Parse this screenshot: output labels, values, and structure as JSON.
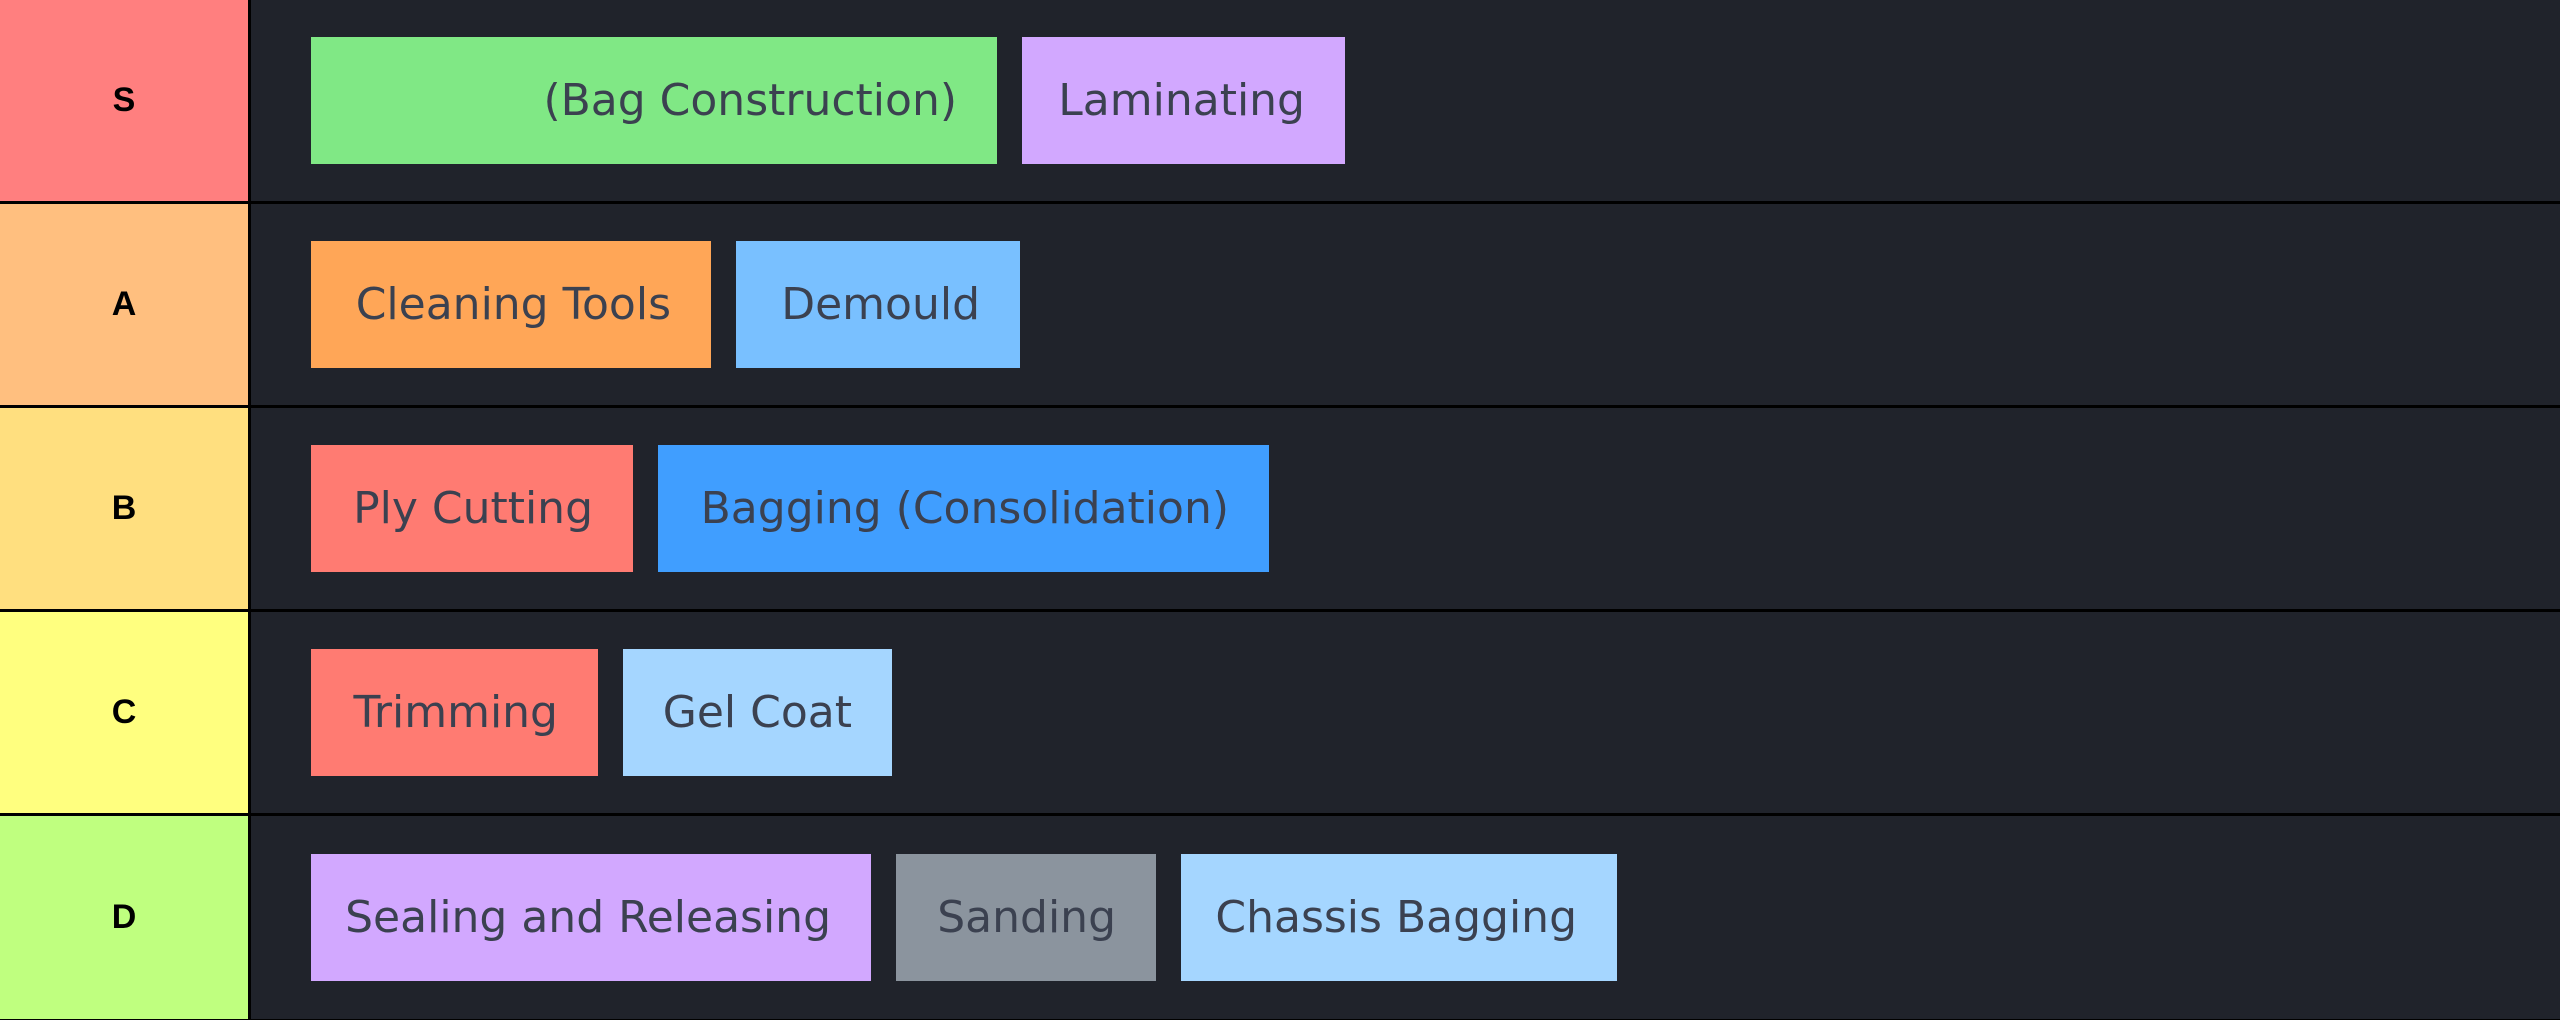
{
  "tiers": [
    {
      "label": "S",
      "color": "#ff7f7f",
      "items": [
        {
          "text": "(Bag Construction)",
          "color": "#7ee787"
        },
        {
          "text": "Laminating",
          "color": "#d2a8ff"
        }
      ]
    },
    {
      "label": "A",
      "color": "#ffbf7f",
      "items": [
        {
          "text": "Cleaning Tools",
          "color": "#ffa657"
        },
        {
          "text": "Demould",
          "color": "#79c0ff"
        }
      ]
    },
    {
      "label": "B",
      "color": "#ffdf7f",
      "items": [
        {
          "text": "Ply Cutting",
          "color": "#ff7b72"
        },
        {
          "text": "Bagging (Consolidation)",
          "color": "#409eff"
        }
      ]
    },
    {
      "label": "C",
      "color": "#ffff7f",
      "items": [
        {
          "text": "Trimming",
          "color": "#ff7b72"
        },
        {
          "text": "Gel Coat",
          "color": "#a5d6ff"
        }
      ]
    },
    {
      "label": "D",
      "color": "#bfff7f",
      "items": [
        {
          "text": "Sealing and Releasing",
          "color": "#d2a8ff"
        },
        {
          "text": "Sanding",
          "color": "#8b949e"
        },
        {
          "text": "Chassis Bagging",
          "color": "#a5d6ff"
        }
      ]
    }
  ]
}
